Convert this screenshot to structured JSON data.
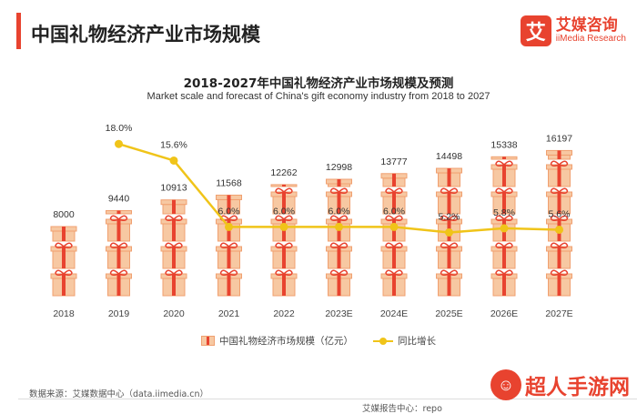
{
  "header": {
    "title": "中国礼物经济产业市场规模"
  },
  "logo": {
    "mark": "艾",
    "cn": "艾媒咨询",
    "en": "iiMedia Research"
  },
  "chart_data": {
    "type": "bar",
    "title": "2018-2027年中国礼物经济产业市场规模及预测",
    "subtitle": "Market scale and forecast of China's gift economy industry from 2018 to 2027",
    "categories": [
      "2018",
      "2019",
      "2020",
      "2021",
      "2022",
      "2023E",
      "2024E",
      "2025E",
      "2026E",
      "2027E"
    ],
    "series": [
      {
        "name": "中国礼物经济市场规模（亿元）",
        "type": "bar",
        "values": [
          8000,
          9440,
          10913,
          11568,
          12262,
          12998,
          13777,
          14498,
          15338,
          16197
        ],
        "labels": [
          "8000",
          "9440",
          "10913",
          "11568",
          "12262",
          "12998",
          "13777",
          "14498",
          "15338",
          "16197"
        ]
      },
      {
        "name": "同比增长",
        "type": "line",
        "values": [
          null,
          18.0,
          15.6,
          6.0,
          6.0,
          6.0,
          6.0,
          5.2,
          5.8,
          5.6
        ],
        "labels": [
          "",
          "18.0%",
          "15.6%",
          "6.0%",
          "6.0%",
          "6.0%",
          "6.0%",
          "5.2%",
          "5.8%",
          "5.6%"
        ]
      }
    ],
    "grid": false,
    "legend": "bottom",
    "colors": {
      "gift_box": "#f7c8a2",
      "gift_box_border": "#f0a070",
      "ribbon": "#e8432f",
      "line": "#f0c419"
    }
  },
  "footer": {
    "source": "数据来源：艾媒数据中心（data.iimedia.cn）",
    "note": "艾媒报告中心：repo"
  },
  "watermark": {
    "text": "超人手游网",
    "icon": "mascot-icon"
  },
  "colors": {
    "accent": "#e8432f"
  }
}
